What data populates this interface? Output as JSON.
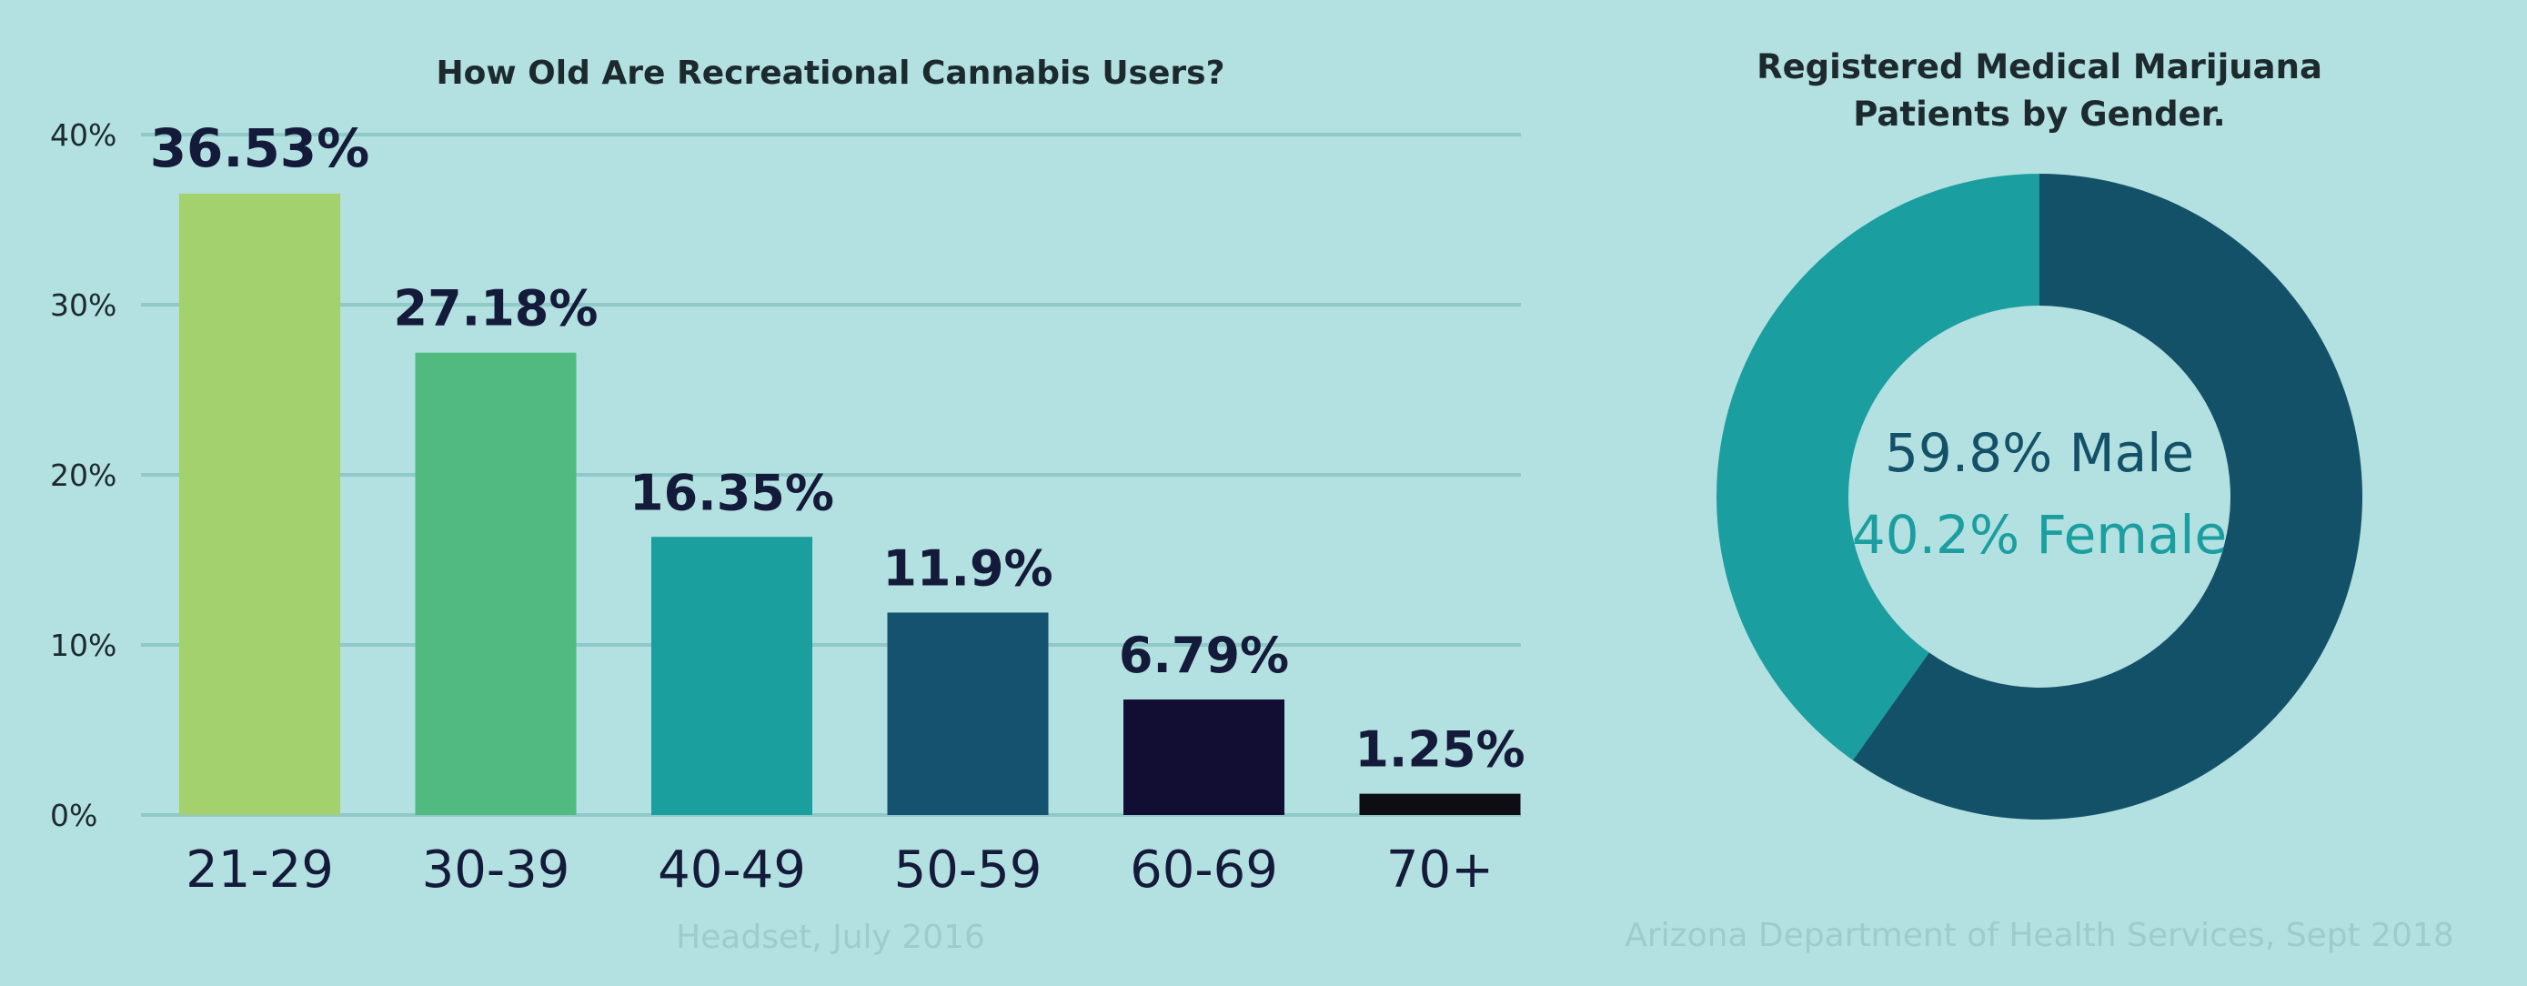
{
  "chart_data": [
    {
      "type": "bar",
      "title": "How Old Are Recreational Cannabis Users?",
      "categories": [
        "21-29",
        "30-39",
        "40-49",
        "50-59",
        "60-69",
        "70+"
      ],
      "values": [
        36.53,
        27.18,
        16.35,
        11.9,
        6.79,
        1.25
      ],
      "value_labels": [
        "36.53%",
        "27.18%",
        "16.35%",
        "11.9%",
        "6.79%",
        "1.25%"
      ],
      "colors": [
        "#a3d16d",
        "#50ba80",
        "#1a9e9e",
        "#145270",
        "#120e33",
        "#0e0d14"
      ],
      "ylim": [
        0,
        40
      ],
      "yticks": [
        0,
        10,
        20,
        30,
        40
      ],
      "ytick_labels": [
        "0%",
        "10%",
        "20%",
        "30%",
        "40%"
      ],
      "grid": true,
      "source": "Headset, July 2016"
    },
    {
      "type": "pie",
      "style": "donut",
      "title_lines": [
        "Registered Medical Marijuana",
        "Patients by Gender."
      ],
      "slices": [
        {
          "label": "59.8% Male",
          "value": 59.8,
          "color": "#135169"
        },
        {
          "label": "40.2% Female",
          "value": 40.2,
          "color": "#1a9ea0"
        }
      ],
      "source": "Arizona Department of Health Services, Sept 2018"
    }
  ]
}
